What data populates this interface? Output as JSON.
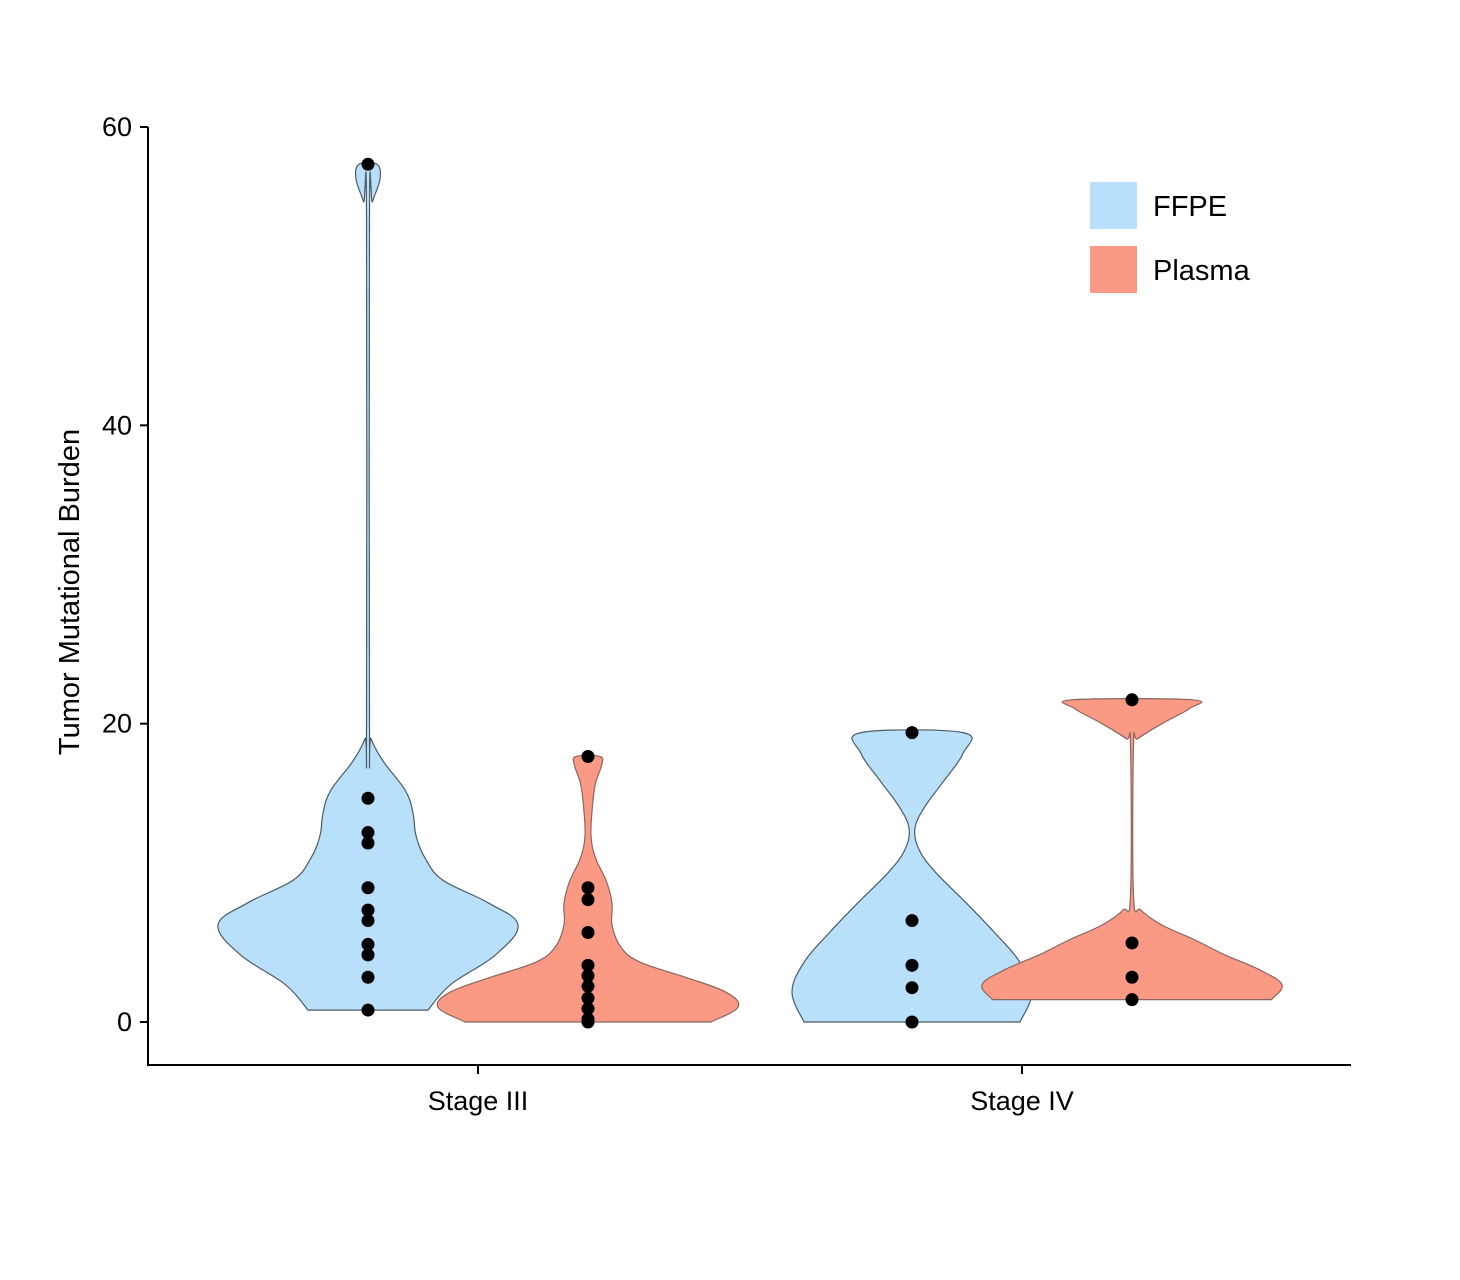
{
  "chart_data": {
    "type": "violin",
    "title": "",
    "xlabel": "",
    "ylabel": "Tumor Mutational Burden",
    "ylim": [
      0,
      60
    ],
    "yticks": [
      0,
      20,
      40,
      60
    ],
    "categories": [
      "Stage III",
      "Stage IV"
    ],
    "grid": false,
    "legend_position": "top-right",
    "series": [
      {
        "name": "FFPE",
        "color": "#b9e0fa",
        "stroke": "#4d5a66",
        "groups": [
          {
            "category": "Stage III",
            "points": [
              57.5,
              15.0,
              12.7,
              12.0,
              9.0,
              7.5,
              6.8,
              5.2,
              4.5,
              3.0,
              0.8
            ],
            "density": [
              [
                0.8,
                0.4
              ],
              [
                2.5,
                0.55
              ],
              [
                4.5,
                0.85
              ],
              [
                6.5,
                1.0
              ],
              [
                8.0,
                0.8
              ],
              [
                9.5,
                0.5
              ],
              [
                11.0,
                0.38
              ],
              [
                12.5,
                0.32
              ],
              [
                14.0,
                0.3
              ],
              [
                15.5,
                0.25
              ],
              [
                17.5,
                0.1
              ],
              [
                19.0,
                0.02
              ],
              [
                20.0,
                0.01
              ],
              [
                54.0,
                0.01
              ],
              [
                55.0,
                0.03
              ],
              [
                56.5,
                0.08
              ],
              [
                57.5,
                0.06
              ]
            ]
          },
          {
            "category": "Stage IV",
            "points": [
              19.4,
              6.8,
              3.8,
              2.3,
              0.0
            ],
            "density": [
              [
                0.0,
                0.72
              ],
              [
                2.0,
                0.8
              ],
              [
                4.0,
                0.72
              ],
              [
                6.0,
                0.55
              ],
              [
                8.0,
                0.36
              ],
              [
                10.0,
                0.16
              ],
              [
                11.5,
                0.05
              ],
              [
                13.0,
                0.02
              ],
              [
                14.5,
                0.09
              ],
              [
                16.0,
                0.2
              ],
              [
                18.0,
                0.34
              ],
              [
                19.4,
                0.34
              ]
            ]
          }
        ]
      },
      {
        "name": "Plasma",
        "color": "#fa9a85",
        "stroke": "#8a6660",
        "groups": [
          {
            "category": "Stage III",
            "points": [
              17.8,
              9.0,
              8.2,
              6.0,
              3.8,
              3.1,
              2.4,
              1.6,
              0.9,
              0.2,
              0.0
            ],
            "density": [
              [
                0.0,
                0.82
              ],
              [
                1.0,
                1.0
              ],
              [
                2.0,
                0.92
              ],
              [
                3.0,
                0.65
              ],
              [
                4.0,
                0.35
              ],
              [
                5.0,
                0.22
              ],
              [
                6.5,
                0.16
              ],
              [
                8.0,
                0.16
              ],
              [
                9.5,
                0.12
              ],
              [
                11.0,
                0.05
              ],
              [
                12.5,
                0.02
              ],
              [
                14.5,
                0.03
              ],
              [
                16.0,
                0.05
              ],
              [
                17.2,
                0.09
              ],
              [
                17.8,
                0.08
              ]
            ]
          },
          {
            "category": "Stage IV",
            "points": [
              21.6,
              5.3,
              3.0,
              1.5
            ],
            "density": [
              [
                1.5,
                0.93
              ],
              [
                2.5,
                1.0
              ],
              [
                3.5,
                0.85
              ],
              [
                4.5,
                0.62
              ],
              [
                5.5,
                0.42
              ],
              [
                6.5,
                0.2
              ],
              [
                7.5,
                0.06
              ],
              [
                8.5,
                0.01
              ],
              [
                18.5,
                0.01
              ],
              [
                19.0,
                0.04
              ],
              [
                20.0,
                0.2
              ],
              [
                21.0,
                0.38
              ],
              [
                21.6,
                0.4
              ]
            ]
          }
        ]
      }
    ]
  }
}
